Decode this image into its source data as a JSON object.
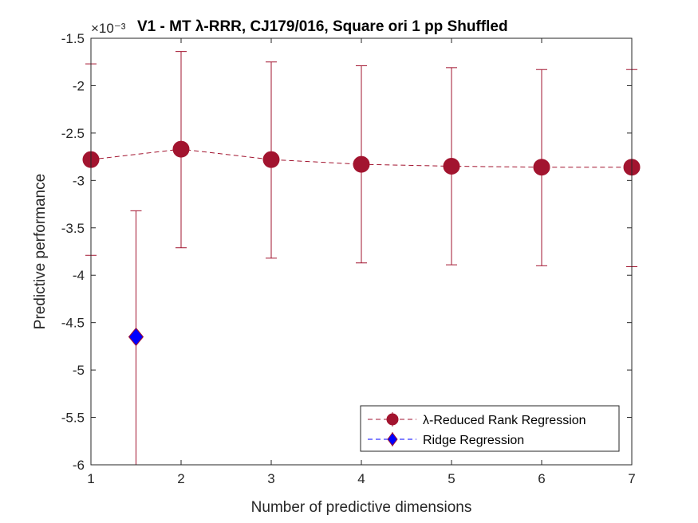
{
  "chart_data": {
    "type": "scatter",
    "title": "V1 - MT λ-RRR, CJ179/016, Square ori 1 pp Shuffled",
    "xlabel": "Number of predictive dimensions",
    "ylabel": "Predictive performance",
    "y_exponent_label": "×10⁻³",
    "xlim": [
      1,
      7
    ],
    "ylim": [
      -6.0,
      -1.5
    ],
    "xticks": [
      "1",
      "2",
      "3",
      "4",
      "5",
      "6",
      "7"
    ],
    "yticks": [
      "-1.5",
      "-2",
      "-2.5",
      "-3",
      "-3.5",
      "-4",
      "-4.5",
      "-5",
      "-5.5",
      "-6"
    ],
    "ytick_values": [
      -1.5,
      -2.0,
      -2.5,
      -3.0,
      -3.5,
      -4.0,
      -4.5,
      -5.0,
      -5.5,
      -6.0
    ],
    "grid": false,
    "box": true,
    "legend_position": "bottom-right",
    "series": [
      {
        "name": "λ-Reduced Rank Regression",
        "color": "#a2142f",
        "marker": "circle",
        "line_style": "dashed",
        "x": [
          1,
          2,
          3,
          4,
          5,
          6,
          7
        ],
        "y": [
          -2.78,
          -2.67,
          -2.78,
          -2.83,
          -2.85,
          -2.86,
          -2.86
        ],
        "err_low": [
          -3.79,
          -3.71,
          -3.82,
          -3.87,
          -3.89,
          -3.9,
          -3.91
        ],
        "err_high": [
          -1.77,
          -1.64,
          -1.75,
          -1.79,
          -1.81,
          -1.83,
          -1.83
        ]
      },
      {
        "name": "Ridge Regression",
        "color": "#0000ff",
        "edge_color": "#a2142f",
        "marker": "diamond",
        "line_style": "dashed",
        "x": [
          1.5
        ],
        "y": [
          -4.65
        ],
        "err_low": [
          -6.0
        ],
        "err_high": [
          -3.32
        ]
      }
    ]
  }
}
